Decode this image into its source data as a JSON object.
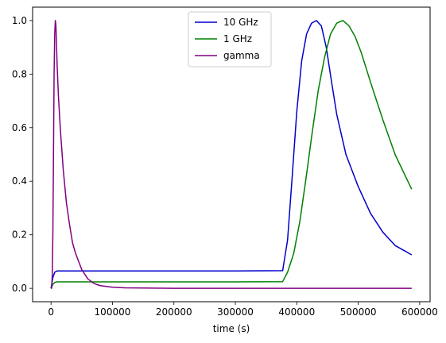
{
  "chart_data": {
    "type": "line",
    "title": "",
    "xlabel": "time (s)",
    "ylabel": "",
    "xlim": [
      -30000,
      617000
    ],
    "ylim": [
      -0.05,
      1.05
    ],
    "xticks": [
      0,
      100000,
      200000,
      300000,
      400000,
      500000,
      600000
    ],
    "xtick_labels": [
      "0",
      "100000",
      "200000",
      "300000",
      "400000",
      "500000",
      "600000"
    ],
    "yticks": [
      0.0,
      0.2,
      0.4,
      0.6,
      0.8,
      1.0
    ],
    "ytick_labels": [
      "0.0",
      "0.2",
      "0.4",
      "0.6",
      "0.8",
      "1.0"
    ],
    "grid": false,
    "legend_position": "top-center",
    "series": [
      {
        "name": "10 GHz",
        "color": "#0000cc",
        "x": [
          0,
          3000,
          6000,
          10000,
          50000,
          100000,
          200000,
          300000,
          377000,
          385000,
          392000,
          400000,
          408000,
          416000,
          424000,
          432000,
          440000,
          448000,
          456000,
          465000,
          480000,
          500000,
          520000,
          540000,
          560000,
          587000
        ],
        "y": [
          0.0,
          0.04,
          0.06,
          0.065,
          0.065,
          0.065,
          0.065,
          0.065,
          0.066,
          0.18,
          0.4,
          0.66,
          0.85,
          0.95,
          0.99,
          1.0,
          0.98,
          0.9,
          0.78,
          0.65,
          0.5,
          0.38,
          0.28,
          0.21,
          0.16,
          0.125
        ]
      },
      {
        "name": "1 GHz",
        "color": "#008000",
        "x": [
          0,
          3000,
          6000,
          10000,
          50000,
          100000,
          200000,
          300000,
          377000,
          385000,
          395000,
          405000,
          415000,
          425000,
          435000,
          445000,
          455000,
          465000,
          475000,
          485000,
          495000,
          505000,
          520000,
          540000,
          560000,
          587000
        ],
        "y": [
          0.0,
          0.015,
          0.022,
          0.024,
          0.024,
          0.024,
          0.024,
          0.024,
          0.025,
          0.06,
          0.13,
          0.25,
          0.41,
          0.58,
          0.74,
          0.86,
          0.95,
          0.99,
          1.0,
          0.98,
          0.94,
          0.88,
          0.77,
          0.63,
          0.5,
          0.37
        ]
      },
      {
        "name": "gamma",
        "color": "#800080",
        "x": [
          0,
          1000,
          2000,
          3000,
          4000,
          5000,
          6000,
          7000,
          8000,
          9000,
          10000,
          12000,
          15000,
          20000,
          25000,
          30000,
          35000,
          40000,
          50000,
          60000,
          70000,
          80000,
          100000,
          120000,
          150000,
          200000,
          300000,
          400000,
          500000,
          587000
        ],
        "y": [
          0.0,
          0.0,
          0.05,
          0.2,
          0.5,
          0.8,
          0.95,
          1.0,
          0.98,
          0.9,
          0.83,
          0.72,
          0.6,
          0.44,
          0.32,
          0.24,
          0.17,
          0.13,
          0.07,
          0.035,
          0.018,
          0.01,
          0.004,
          0.002,
          0.001,
          0.0,
          0.0,
          0.0,
          0.0,
          0.0
        ]
      }
    ]
  }
}
